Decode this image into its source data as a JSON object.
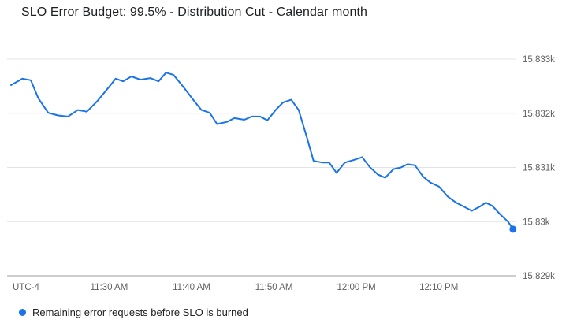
{
  "header": {
    "title": "SLO Error Budget: 99.5% - Distribution Cut - Calendar month"
  },
  "legend": {
    "label": "Remaining error requests before SLO is burned",
    "color": "#1a73e8"
  },
  "colors": {
    "line": "#1a73e8",
    "gridline": "#e3e3e3",
    "axis": "#9e9e9e",
    "tick_text": "#616161",
    "title_text": "#202124"
  },
  "chart_data": {
    "type": "line",
    "title": "SLO Error Budget: 99.5% - Distribution Cut - Calendar month",
    "xlabel": "",
    "ylabel": "",
    "x_unit": "minutes after 11:00 AM (UTC-4)",
    "utc_offset_label": "UTC-4",
    "x_range": [
      18.1,
      79.4
    ],
    "x_ticks": [
      {
        "m": 30,
        "label": "11:30 AM"
      },
      {
        "m": 40,
        "label": "11:40 AM"
      },
      {
        "m": 50,
        "label": "11:50 AM"
      },
      {
        "m": 60,
        "label": "12:00 PM"
      },
      {
        "m": 70,
        "label": "12:10 PM"
      }
    ],
    "y_ticks": [
      {
        "value": 15833,
        "label": "15.833k"
      },
      {
        "value": 15832,
        "label": "15.832k"
      },
      {
        "value": 15831,
        "label": "15.831k"
      },
      {
        "value": 15830,
        "label": "15.83k"
      },
      {
        "value": 15829,
        "label": "15.829k"
      }
    ],
    "ylim": [
      15829,
      15833
    ],
    "grid": "horizontal",
    "legend_position": "bottom-left",
    "series": [
      {
        "name": "Remaining error requests before SLO is burned",
        "color": "#1a73e8",
        "endpoint_dot": true,
        "x": [
          18.1,
          19.5,
          20.5,
          21.4,
          22.6,
          23.8,
          25.0,
          26.2,
          27.3,
          28.6,
          29.8,
          30.8,
          31.7,
          32.7,
          33.8,
          35.0,
          36.0,
          36.9,
          37.8,
          39.0,
          40.3,
          41.2,
          42.2,
          43.1,
          44.3,
          45.2,
          46.4,
          47.3,
          48.3,
          49.2,
          50.2,
          51.1,
          52.1,
          53.0,
          54.0,
          54.8,
          55.9,
          56.7,
          57.6,
          58.6,
          59.7,
          60.7,
          61.6,
          62.6,
          63.5,
          64.5,
          65.4,
          66.2,
          67.1,
          68.1,
          69.0,
          70.0,
          71.1,
          72.1,
          73.0,
          74.0,
          75.0,
          75.7,
          76.5,
          77.4,
          78.4,
          79.0
        ],
        "values": [
          15832.52,
          15832.64,
          15832.61,
          15832.28,
          15832.01,
          15831.96,
          15831.94,
          15832.06,
          15832.03,
          15832.23,
          15832.45,
          15832.64,
          15832.59,
          15832.68,
          15832.62,
          15832.65,
          15832.59,
          15832.75,
          15832.71,
          15832.49,
          15832.23,
          15832.06,
          15832.01,
          15831.8,
          15831.84,
          15831.91,
          15831.88,
          15831.94,
          15831.94,
          15831.87,
          15832.06,
          15832.2,
          15832.25,
          15832.06,
          15831.55,
          15831.12,
          15831.09,
          15831.09,
          15830.9,
          15831.09,
          15831.14,
          15831.19,
          15831.01,
          15830.87,
          15830.81,
          15830.97,
          15831.0,
          15831.06,
          15831.04,
          15830.83,
          15830.72,
          15830.65,
          15830.46,
          15830.35,
          15830.28,
          15830.2,
          15830.28,
          15830.35,
          15830.29,
          15830.14,
          15830.0,
          15829.86
        ]
      }
    ]
  }
}
